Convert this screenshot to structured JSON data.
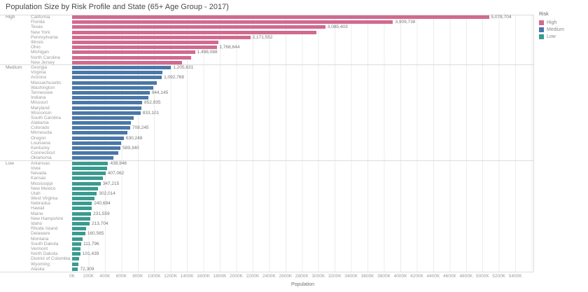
{
  "title": "Population Size by Risk Profile and State (65+ Age Group - 2017)",
  "colors": {
    "high": "#d16a8f",
    "medium": "#4a77a7",
    "low": "#3a9b8f",
    "gridline": "#ececec",
    "separator": "#dcdcdc"
  },
  "legend": {
    "title": "Risk",
    "items": [
      {
        "label": "High",
        "color": "#d16a8f"
      },
      {
        "label": "Medium",
        "color": "#4a77a7"
      },
      {
        "label": "Low",
        "color": "#3a9b8f"
      }
    ]
  },
  "axis": {
    "xlabel": "Population",
    "tick_labels": [
      "0K",
      "200K",
      "400K",
      "600K",
      "800K",
      "1000K",
      "1200K",
      "1400K",
      "1600K",
      "1800K",
      "2000K",
      "2200K",
      "2400K",
      "2600K",
      "2800K",
      "3000K",
      "3200K",
      "3400K",
      "3600K",
      "3800K",
      "4000K",
      "4200K",
      "4400K",
      "4600K",
      "4800K",
      "5000K",
      "5200K",
      "5400K"
    ],
    "tick_interval_k": 200,
    "scale_max_k": 5620
  },
  "chart_data": {
    "type": "bar",
    "orientation": "horizontal",
    "title": "Population Size by Risk Profile and State (65+ Age Group - 2017)",
    "xlabel": "Population",
    "xlim": [
      0,
      5620000
    ],
    "grid": "vertical",
    "legend_position": "top-right",
    "note": "values without a visible data label are estimated from bar length",
    "groups": [
      {
        "risk": "High",
        "color": "#d16a8f",
        "states": [
          {
            "name": "California",
            "value": 5078704,
            "label": "5,078,704"
          },
          {
            "name": "Florida",
            "value": 3909738,
            "label": "3,909,738"
          },
          {
            "name": "Texas",
            "value": 3085403,
            "label": "3,085,403"
          },
          {
            "name": "New York",
            "value": 2975000,
            "label": ""
          },
          {
            "name": "Pennsylvania",
            "value": 2171552,
            "label": "2,171,552"
          },
          {
            "name": "Illinois",
            "value": 1781000,
            "label": ""
          },
          {
            "name": "Ohio",
            "value": 1768644,
            "label": "1,768,644"
          },
          {
            "name": "Michigan",
            "value": 1498088,
            "label": "1,498,088"
          },
          {
            "name": "North Carolina",
            "value": 1449000,
            "label": ""
          },
          {
            "name": "New Jersey",
            "value": 1342000,
            "label": ""
          }
        ]
      },
      {
        "risk": "Medium",
        "color": "#4a77a7",
        "states": [
          {
            "name": "Georgia",
            "value": 1205631,
            "label": "1,205,631"
          },
          {
            "name": "Virginia",
            "value": 1100000,
            "label": ""
          },
          {
            "name": "Arizona",
            "value": 1092768,
            "label": "1,092,768"
          },
          {
            "name": "Massachusetts",
            "value": 1030000,
            "label": ""
          },
          {
            "name": "Washington",
            "value": 985000,
            "label": ""
          },
          {
            "name": "Tennessee",
            "value": 944145,
            "label": "944,145"
          },
          {
            "name": "Indiana",
            "value": 930000,
            "label": ""
          },
          {
            "name": "Missouri",
            "value": 852935,
            "label": "852,935"
          },
          {
            "name": "Maryland",
            "value": 842000,
            "label": ""
          },
          {
            "name": "Wisconsin",
            "value": 833101,
            "label": "833,101"
          },
          {
            "name": "South Carolina",
            "value": 747000,
            "label": ""
          },
          {
            "name": "Alabama",
            "value": 715000,
            "label": ""
          },
          {
            "name": "Colorado",
            "value": 708245,
            "label": "708,245"
          },
          {
            "name": "Minnesota",
            "value": 676000,
            "label": ""
          },
          {
            "name": "Oregon",
            "value": 630248,
            "label": "630,248"
          },
          {
            "name": "Louisiana",
            "value": 600000,
            "label": ""
          },
          {
            "name": "Kentucky",
            "value": 589340,
            "label": "589,340"
          },
          {
            "name": "Connecticut",
            "value": 560000,
            "label": ""
          },
          {
            "name": "Oklahoma",
            "value": 505000,
            "label": ""
          }
        ]
      },
      {
        "risk": "Low",
        "color": "#3a9b8f",
        "states": [
          {
            "name": "Arkansas",
            "value": 438946,
            "label": "438,946"
          },
          {
            "name": "Iowa",
            "value": 425000,
            "label": ""
          },
          {
            "name": "Nevada",
            "value": 407062,
            "label": "407,062"
          },
          {
            "name": "Kansas",
            "value": 374000,
            "label": ""
          },
          {
            "name": "Mississippi",
            "value": 347215,
            "label": "347,215"
          },
          {
            "name": "New Mexico",
            "value": 315000,
            "label": ""
          },
          {
            "name": "Utah",
            "value": 302014,
            "label": "302,014"
          },
          {
            "name": "West Virginia",
            "value": 270000,
            "label": ""
          },
          {
            "name": "Nebraska",
            "value": 240694,
            "label": "240,694"
          },
          {
            "name": "Hawaii",
            "value": 235000,
            "label": ""
          },
          {
            "name": "Maine",
            "value": 231559,
            "label": "231,559"
          },
          {
            "name": "New Hampshire",
            "value": 220000,
            "label": ""
          },
          {
            "name": "Idaho",
            "value": 213704,
            "label": "213,704"
          },
          {
            "name": "Rhode Island",
            "value": 172000,
            "label": ""
          },
          {
            "name": "Delaware",
            "value": 160565,
            "label": "160,565"
          },
          {
            "name": "Montana",
            "value": 130000,
            "label": ""
          },
          {
            "name": "South Dakota",
            "value": 111796,
            "label": "111,796"
          },
          {
            "name": "Vermont",
            "value": 106000,
            "label": ""
          },
          {
            "name": "North Dakota",
            "value": 101439,
            "label": "101,439"
          },
          {
            "name": "District of Columbia",
            "value": 84000,
            "label": ""
          },
          {
            "name": "Wyoming",
            "value": 78000,
            "label": ""
          },
          {
            "name": "Alaska",
            "value": 72309,
            "label": "72,309"
          }
        ]
      }
    ]
  }
}
